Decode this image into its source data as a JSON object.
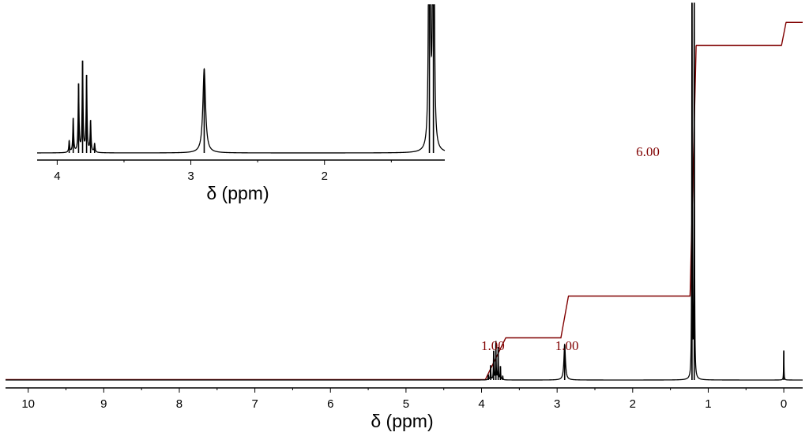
{
  "chart_data": [
    {
      "type": "line",
      "panel": "main",
      "xlabel": "δ (ppm)",
      "xlim": [
        10.3,
        -0.25
      ],
      "x_reversed": true,
      "xticks": [
        10,
        9,
        8,
        7,
        6,
        5,
        4,
        3,
        2,
        1,
        0
      ],
      "xtick_labels": [
        "10",
        "9",
        "8",
        "7",
        "6",
        "5",
        "4",
        "3",
        "2",
        "1",
        "0"
      ],
      "grid": false,
      "spectrum_color": "#000000",
      "integral_color": "#800000",
      "peaks": [
        {
          "center": 3.91,
          "height": 0.04,
          "width": 0.004
        },
        {
          "center": 3.88,
          "height": 0.12,
          "width": 0.004
        },
        {
          "center": 3.84,
          "height": 0.24,
          "width": 0.004
        },
        {
          "center": 3.81,
          "height": 0.32,
          "width": 0.004
        },
        {
          "center": 3.78,
          "height": 0.27,
          "width": 0.004
        },
        {
          "center": 3.75,
          "height": 0.11,
          "width": 0.004
        },
        {
          "center": 3.72,
          "height": 0.03,
          "width": 0.004
        },
        {
          "center": 2.9,
          "height": 0.3,
          "width": 0.012
        },
        {
          "center": 1.215,
          "height": 4.5,
          "width": 0.003
        },
        {
          "center": 1.185,
          "height": 4.5,
          "width": 0.003
        },
        {
          "center": 0.0,
          "height": 0.25,
          "width": 0.003
        }
      ],
      "integral": {
        "steps": [
          {
            "start": 3.95,
            "end": 3.68,
            "value": 1.0
          },
          {
            "start": 2.95,
            "end": 2.85,
            "value": 1.0
          },
          {
            "start": 1.24,
            "end": 1.16,
            "value": 6.0
          },
          {
            "start": 0.03,
            "end": -0.03,
            "value": 0.55
          }
        ]
      },
      "integral_labels": [
        {
          "text": "1.00",
          "x": 3.85
        },
        {
          "text": "1.00",
          "x": 2.87
        },
        {
          "text": "6.00",
          "x": 1.8
        }
      ]
    },
    {
      "type": "line",
      "panel": "inset",
      "xlabel": "δ (ppm)",
      "xlim": [
        4.15,
        1.1
      ],
      "x_reversed": true,
      "xticks": [
        4,
        3,
        2
      ],
      "xtick_labels": [
        "4",
        "3",
        "2"
      ],
      "grid": false
    }
  ]
}
